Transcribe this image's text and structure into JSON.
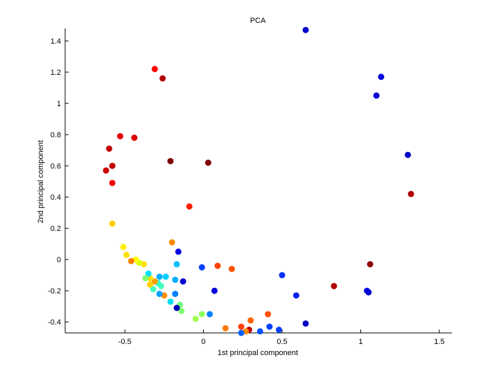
{
  "chart_data": {
    "type": "scatter",
    "title": "PCA",
    "xlabel": "1st principal component",
    "ylabel": "2nd principal component",
    "xlim": [
      -0.88,
      1.58
    ],
    "ylim": [
      -0.47,
      1.48
    ],
    "xticks": [
      -0.5,
      0,
      0.5,
      1,
      1.5
    ],
    "xtick_labels": [
      "-0.5",
      "0",
      "0.5",
      "1",
      "1.5"
    ],
    "yticks": [
      -0.4,
      -0.2,
      0,
      0.2,
      0.4,
      0.6,
      0.8,
      1,
      1.2,
      1.4
    ],
    "ytick_labels": [
      "-0.4",
      "-0.2",
      "0",
      "0.2",
      "0.4",
      "0.6",
      "0.8",
      "1",
      "1.2",
      "1.4"
    ],
    "grid": false,
    "legend": "none",
    "colormap": "jet",
    "points": [
      {
        "x": 0.65,
        "y": 1.47,
        "color": "#0000c8"
      },
      {
        "x": 1.13,
        "y": 1.17,
        "color": "#0000e0"
      },
      {
        "x": 1.1,
        "y": 1.05,
        "color": "#0000d8"
      },
      {
        "x": 1.3,
        "y": 0.67,
        "color": "#0000c8"
      },
      {
        "x": 1.32,
        "y": 0.42,
        "color": "#b00000"
      },
      {
        "x": 1.06,
        "y": -0.03,
        "color": "#900000"
      },
      {
        "x": 0.83,
        "y": -0.17,
        "color": "#b00000"
      },
      {
        "x": 1.04,
        "y": -0.2,
        "color": "#0010e8"
      },
      {
        "x": 1.05,
        "y": -0.21,
        "color": "#0000d0"
      },
      {
        "x": 0.65,
        "y": -0.41,
        "color": "#0000c8"
      },
      {
        "x": 0.59,
        "y": -0.23,
        "color": "#0020f0"
      },
      {
        "x": 0.5,
        "y": -0.1,
        "color": "#0030ff"
      },
      {
        "x": 0.48,
        "y": -0.45,
        "color": "#0040ff"
      },
      {
        "x": 0.42,
        "y": -0.43,
        "color": "#0040ff"
      },
      {
        "x": 0.41,
        "y": -0.35,
        "color": "#ff5000"
      },
      {
        "x": 0.36,
        "y": -0.46,
        "color": "#0050ff"
      },
      {
        "x": 0.3,
        "y": -0.39,
        "color": "#ff6400"
      },
      {
        "x": 0.29,
        "y": -0.45,
        "color": "#c00000"
      },
      {
        "x": 0.27,
        "y": -0.46,
        "color": "#ff8c00"
      },
      {
        "x": 0.24,
        "y": -0.43,
        "color": "#ff4000"
      },
      {
        "x": 0.24,
        "y": -0.47,
        "color": "#0060ff"
      },
      {
        "x": 0.14,
        "y": -0.44,
        "color": "#ff7800"
      },
      {
        "x": 0.18,
        "y": -0.06,
        "color": "#ff5000"
      },
      {
        "x": 0.09,
        "y": -0.04,
        "color": "#ff4000"
      },
      {
        "x": 0.07,
        "y": -0.2,
        "color": "#0000e0"
      },
      {
        "x": 0.03,
        "y": 0.62,
        "color": "#800000"
      },
      {
        "x": 0.04,
        "y": -0.35,
        "color": "#0080ff"
      },
      {
        "x": -0.01,
        "y": -0.05,
        "color": "#0040ff"
      },
      {
        "x": -0.01,
        "y": -0.35,
        "color": "#90ff60"
      },
      {
        "x": -0.05,
        "y": -0.38,
        "color": "#a0ff50"
      },
      {
        "x": -0.09,
        "y": 0.34,
        "color": "#ff2000"
      },
      {
        "x": -0.13,
        "y": -0.14,
        "color": "#0000d0"
      },
      {
        "x": -0.14,
        "y": -0.33,
        "color": "#80ff70"
      },
      {
        "x": -0.15,
        "y": -0.29,
        "color": "#70ff80"
      },
      {
        "x": -0.16,
        "y": 0.05,
        "color": "#0000e0"
      },
      {
        "x": -0.17,
        "y": -0.31,
        "color": "#0000b8"
      },
      {
        "x": -0.17,
        "y": -0.03,
        "color": "#00c0ff"
      },
      {
        "x": -0.18,
        "y": -0.13,
        "color": "#00b0ff"
      },
      {
        "x": -0.18,
        "y": -0.22,
        "color": "#0080ff"
      },
      {
        "x": -0.2,
        "y": 0.11,
        "color": "#ff8c00"
      },
      {
        "x": -0.21,
        "y": -0.27,
        "color": "#00e0f0"
      },
      {
        "x": -0.21,
        "y": 0.63,
        "color": "#800000"
      },
      {
        "x": -0.24,
        "y": -0.11,
        "color": "#00d0ff"
      },
      {
        "x": -0.25,
        "y": -0.23,
        "color": "#ff9000"
      },
      {
        "x": -0.26,
        "y": 1.16,
        "color": "#b00000"
      },
      {
        "x": -0.27,
        "y": -0.17,
        "color": "#40ffc0"
      },
      {
        "x": -0.28,
        "y": -0.22,
        "color": "#00a0ff"
      },
      {
        "x": -0.28,
        "y": -0.11,
        "color": "#00b0ff"
      },
      {
        "x": -0.29,
        "y": -0.15,
        "color": "#30ffd0"
      },
      {
        "x": -0.31,
        "y": -0.14,
        "color": "#ff9c00"
      },
      {
        "x": -0.31,
        "y": 1.22,
        "color": "#ff0000"
      },
      {
        "x": -0.32,
        "y": -0.19,
        "color": "#40ffc0"
      },
      {
        "x": -0.34,
        "y": -0.16,
        "color": "#ffd000"
      },
      {
        "x": -0.34,
        "y": -0.12,
        "color": "#ffe000"
      },
      {
        "x": -0.35,
        "y": -0.09,
        "color": "#00e0ff"
      },
      {
        "x": -0.37,
        "y": -0.12,
        "color": "#80ff70"
      },
      {
        "x": -0.38,
        "y": -0.03,
        "color": "#ffe000"
      },
      {
        "x": -0.41,
        "y": -0.02,
        "color": "#e0ff10"
      },
      {
        "x": -0.43,
        "y": 0.0,
        "color": "#ffff00"
      },
      {
        "x": -0.44,
        "y": 0.78,
        "color": "#e00000"
      },
      {
        "x": -0.46,
        "y": -0.01,
        "color": "#ff8000"
      },
      {
        "x": -0.49,
        "y": 0.03,
        "color": "#ffe000"
      },
      {
        "x": -0.51,
        "y": 0.08,
        "color": "#ffef00"
      },
      {
        "x": -0.53,
        "y": 0.79,
        "color": "#e00000"
      },
      {
        "x": -0.58,
        "y": 0.23,
        "color": "#ffd000"
      },
      {
        "x": -0.58,
        "y": 0.49,
        "color": "#f00000"
      },
      {
        "x": -0.58,
        "y": 0.6,
        "color": "#c00000"
      },
      {
        "x": -0.6,
        "y": 0.71,
        "color": "#c00000"
      },
      {
        "x": -0.62,
        "y": 0.57,
        "color": "#d00000"
      }
    ]
  }
}
